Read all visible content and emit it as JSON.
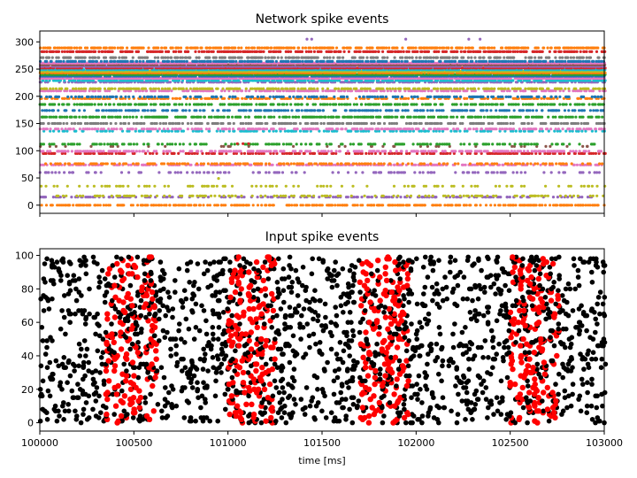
{
  "chart_data": [
    {
      "type": "scatter",
      "title": "Network spike events",
      "xlabel": "",
      "ylabel": "",
      "xlim": [
        100000,
        103000
      ],
      "ylim": [
        -15,
        320
      ],
      "yticks": [
        0,
        50,
        100,
        150,
        200,
        250,
        300
      ],
      "xticks": [
        100000,
        100500,
        101000,
        101500,
        102000,
        102500,
        103000
      ],
      "show_xticklabels": false,
      "grid": false,
      "legend": "none",
      "palette": [
        "#1f77b4",
        "#ff7f0e",
        "#2ca02c",
        "#d62728",
        "#9467bd",
        "#8c564b",
        "#e377c2",
        "#7f7f7f",
        "#bcbd22",
        "#17becf"
      ],
      "active_rows": [
        {
          "neuron": 0,
          "rate": 0.55,
          "color": "#ff7f0e"
        },
        {
          "neuron": 15,
          "rate": 0.35,
          "color": "#9467bd"
        },
        {
          "neuron": 17,
          "rate": 0.25,
          "color": "#bcbd22"
        },
        {
          "neuron": 35,
          "rate": 0.2,
          "color": "#bcbd22"
        },
        {
          "neuron": 60,
          "rate": 0.2,
          "color": "#9467bd"
        },
        {
          "neuron": 74,
          "rate": 0.5,
          "color": "#e377c2"
        },
        {
          "neuron": 76,
          "rate": 0.35,
          "color": "#ff7f0e"
        },
        {
          "neuron": 95,
          "rate": 0.4,
          "color": "#d62728"
        },
        {
          "neuron": 99,
          "rate": 0.45,
          "color": "#e377c2"
        },
        {
          "neuron": 108,
          "rate": 0.08,
          "color": "#8c564b"
        },
        {
          "neuron": 112,
          "rate": 0.3,
          "color": "#2ca02c"
        },
        {
          "neuron": 136,
          "rate": 0.4,
          "color": "#17becf"
        },
        {
          "neuron": 140,
          "rate": 0.45,
          "color": "#e377c2"
        },
        {
          "neuron": 150,
          "rate": 0.5,
          "color": "#7f7f7f"
        },
        {
          "neuron": 162,
          "rate": 0.55,
          "color": "#2ca02c"
        },
        {
          "neuron": 174,
          "rate": 0.45,
          "color": "#1f77b4"
        },
        {
          "neuron": 185,
          "rate": 0.5,
          "color": "#2ca02c"
        },
        {
          "neuron": 196,
          "rate": 0.5,
          "color": "#ff7f0e"
        },
        {
          "neuron": 199,
          "rate": 0.4,
          "color": "#1f77b4"
        },
        {
          "neuron": 210,
          "rate": 0.5,
          "color": "#e377c2"
        },
        {
          "neuron": 214,
          "rate": 0.5,
          "color": "#bcbd22"
        },
        {
          "neuron": 226,
          "rate": 0.55,
          "color": "#9467bd"
        },
        {
          "neuron": 229,
          "rate": 0.6,
          "color": "#17becf"
        },
        {
          "neuron": 233,
          "rate": 0.9,
          "color": "#e377c2"
        },
        {
          "neuron": 237,
          "rate": 0.9,
          "color": "#1f77b4"
        },
        {
          "neuron": 240,
          "rate": 0.9,
          "color": "#2ca02c"
        },
        {
          "neuron": 243,
          "rate": 0.9,
          "color": "#ff7f0e"
        },
        {
          "neuron": 246,
          "rate": 0.9,
          "color": "#bcbd22"
        },
        {
          "neuron": 249,
          "rate": 0.9,
          "color": "#17becf"
        },
        {
          "neuron": 252,
          "rate": 0.9,
          "color": "#d62728"
        },
        {
          "neuron": 255,
          "rate": 0.9,
          "color": "#9467bd"
        },
        {
          "neuron": 258,
          "rate": 0.9,
          "color": "#8c564b"
        },
        {
          "neuron": 261,
          "rate": 0.9,
          "color": "#e377c2"
        },
        {
          "neuron": 264,
          "rate": 0.6,
          "color": "#1f77b4"
        },
        {
          "neuron": 271,
          "rate": 0.45,
          "color": "#7f7f7f"
        },
        {
          "neuron": 282,
          "rate": 0.55,
          "color": "#d62728"
        },
        {
          "neuron": 289,
          "rate": 0.6,
          "color": "#ff7f0e"
        }
      ],
      "sparse_points": [
        {
          "x": 100950,
          "y": 49,
          "color": "#bcbd22"
        },
        {
          "x": 101050,
          "y": 113,
          "color": "#d62728"
        },
        {
          "x": 101080,
          "y": 113,
          "color": "#d62728"
        },
        {
          "x": 101110,
          "y": 113,
          "color": "#d62728"
        },
        {
          "x": 101420,
          "y": 305,
          "color": "#9467bd"
        },
        {
          "x": 101445,
          "y": 305,
          "color": "#9467bd"
        },
        {
          "x": 101945,
          "y": 305,
          "color": "#9467bd"
        },
        {
          "x": 102280,
          "y": 305,
          "color": "#9467bd"
        },
        {
          "x": 102340,
          "y": 305,
          "color": "#9467bd"
        }
      ]
    },
    {
      "type": "scatter",
      "title": "Input spike events",
      "xlabel": "time [ms]",
      "ylabel": "",
      "xlim": [
        100000,
        103000
      ],
      "ylim": [
        -5,
        104
      ],
      "yticks": [
        0,
        20,
        40,
        60,
        80,
        100
      ],
      "xticks": [
        100000,
        100500,
        101000,
        101500,
        102000,
        102500,
        103000
      ],
      "grid": false,
      "legend": "none",
      "series": [
        {
          "color": "#000000",
          "description_rate": 0.05,
          "channels": [
            0,
            99
          ]
        },
        {
          "color": "#ff0000",
          "pattern_windows": [
            [
              100350,
              100620
            ],
            [
              101000,
              101250
            ],
            [
              101700,
              101960
            ],
            [
              102500,
              102760
            ]
          ],
          "channels": [
            0,
            99
          ]
        }
      ]
    }
  ]
}
